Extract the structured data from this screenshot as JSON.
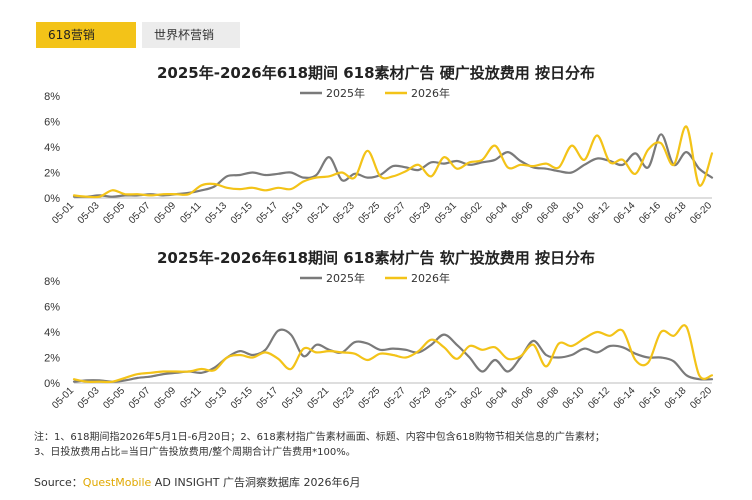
{
  "tabs": [
    {
      "label": "618营销",
      "active": true
    },
    {
      "label": "世界杯营销",
      "active": false
    }
  ],
  "colors": {
    "series_2025": "#7a7a7a",
    "series_2026": "#f3c318",
    "accent": "#f3c318"
  },
  "chart_data": [
    {
      "type": "line",
      "title": "2025年-2026年618期间 618素材广告 硬广投放费用 按日分布",
      "x": [
        "05-01",
        "05-02",
        "05-03",
        "05-04",
        "05-05",
        "05-06",
        "05-07",
        "05-08",
        "05-09",
        "05-10",
        "05-11",
        "05-12",
        "05-13",
        "05-14",
        "05-15",
        "05-16",
        "05-17",
        "05-18",
        "05-19",
        "05-20",
        "05-21",
        "05-22",
        "05-23",
        "05-24",
        "05-25",
        "05-26",
        "05-27",
        "05-28",
        "05-29",
        "05-30",
        "05-31",
        "06-01",
        "06-02",
        "06-03",
        "06-04",
        "06-05",
        "06-06",
        "06-07",
        "06-08",
        "06-09",
        "06-10",
        "06-11",
        "06-12",
        "06-13",
        "06-14",
        "06-15",
        "06-16",
        "06-17",
        "06-18",
        "06-19",
        "06-20"
      ],
      "xticks": [
        "05-01",
        "05-03",
        "05-05",
        "05-07",
        "05-09",
        "05-11",
        "05-13",
        "05-15",
        "05-17",
        "05-19",
        "05-21",
        "05-23",
        "05-25",
        "05-27",
        "05-29",
        "05-31",
        "06-02",
        "06-04",
        "06-06",
        "06-08",
        "06-10",
        "06-12",
        "06-14",
        "06-16",
        "06-18",
        "06-20"
      ],
      "yticks": [
        "0%",
        "2%",
        "4%",
        "6%",
        "8%"
      ],
      "ylim": [
        0,
        8
      ],
      "legend": "top-center",
      "series": [
        {
          "name": "2025年",
          "values": [
            0.1,
            0.1,
            0.2,
            0.1,
            0.2,
            0.2,
            0.3,
            0.2,
            0.3,
            0.4,
            0.6,
            0.9,
            1.7,
            1.8,
            2.0,
            1.8,
            1.9,
            2.0,
            1.6,
            1.8,
            3.2,
            1.4,
            1.9,
            1.6,
            1.8,
            2.5,
            2.4,
            2.2,
            2.8,
            2.7,
            2.9,
            2.6,
            2.8,
            3.0,
            3.6,
            2.9,
            2.4,
            2.3,
            2.1,
            2.0,
            2.6,
            3.1,
            2.9,
            2.6,
            3.5,
            2.4,
            5.0,
            2.6,
            3.6,
            2.3,
            1.6
          ]
        },
        {
          "name": "2026年",
          "values": [
            0.2,
            0.1,
            0.1,
            0.6,
            0.3,
            0.3,
            0.2,
            0.3,
            0.3,
            0.3,
            1.0,
            1.1,
            0.8,
            0.7,
            0.8,
            0.6,
            0.8,
            0.7,
            1.3,
            1.6,
            1.7,
            2.0,
            1.6,
            3.7,
            1.7,
            1.7,
            2.1,
            2.6,
            1.7,
            3.2,
            2.3,
            2.8,
            3.0,
            4.1,
            2.4,
            2.6,
            2.5,
            2.7,
            2.4,
            4.1,
            3.0,
            4.9,
            2.8,
            3.0,
            1.9,
            3.8,
            4.3,
            2.6,
            5.6,
            1.0,
            3.5
          ]
        }
      ]
    },
    {
      "type": "line",
      "title": "2025年-2026年618期间 618素材广告 软广投放费用 按日分布",
      "x": [
        "05-01",
        "05-02",
        "05-03",
        "05-04",
        "05-05",
        "05-06",
        "05-07",
        "05-08",
        "05-09",
        "05-10",
        "05-11",
        "05-12",
        "05-13",
        "05-14",
        "05-15",
        "05-16",
        "05-17",
        "05-18",
        "05-19",
        "05-20",
        "05-21",
        "05-22",
        "05-23",
        "05-24",
        "05-25",
        "05-26",
        "05-27",
        "05-28",
        "05-29",
        "05-30",
        "05-31",
        "06-01",
        "06-02",
        "06-03",
        "06-04",
        "06-05",
        "06-06",
        "06-07",
        "06-08",
        "06-09",
        "06-10",
        "06-11",
        "06-12",
        "06-13",
        "06-14",
        "06-15",
        "06-16",
        "06-17",
        "06-18",
        "06-19",
        "06-20"
      ],
      "xticks": [
        "05-01",
        "05-03",
        "05-05",
        "05-07",
        "05-09",
        "05-11",
        "05-13",
        "05-15",
        "05-17",
        "05-19",
        "05-21",
        "05-23",
        "05-25",
        "05-27",
        "05-29",
        "05-31",
        "06-02",
        "06-04",
        "06-06",
        "06-08",
        "06-10",
        "06-12",
        "06-14",
        "06-16",
        "06-18",
        "06-20"
      ],
      "yticks": [
        "0%",
        "2%",
        "4%",
        "6%",
        "8%"
      ],
      "ylim": [
        0,
        8
      ],
      "legend": "top-center",
      "series": [
        {
          "name": "2025年",
          "values": [
            0.1,
            0.2,
            0.2,
            0.1,
            0.2,
            0.4,
            0.5,
            0.7,
            0.8,
            0.9,
            0.8,
            1.2,
            2.0,
            2.5,
            2.2,
            2.6,
            4.1,
            3.8,
            2.1,
            3.0,
            2.6,
            2.4,
            3.2,
            3.1,
            2.6,
            2.7,
            2.6,
            2.4,
            3.0,
            3.8,
            3.0,
            2.0,
            0.9,
            1.8,
            0.9,
            2.0,
            3.3,
            2.2,
            2.0,
            2.2,
            2.7,
            2.4,
            2.9,
            2.8,
            2.3,
            2.0,
            2.0,
            1.7,
            0.6,
            0.3,
            0.3
          ]
        },
        {
          "name": "2026年",
          "values": [
            0.3,
            0.1,
            0.1,
            0.1,
            0.4,
            0.7,
            0.8,
            0.9,
            0.9,
            0.9,
            1.1,
            1.0,
            2.0,
            2.2,
            2.0,
            2.4,
            1.9,
            1.1,
            2.7,
            2.4,
            2.5,
            2.4,
            2.3,
            1.8,
            2.3,
            2.2,
            2.0,
            2.5,
            3.4,
            2.8,
            1.9,
            2.9,
            2.6,
            2.8,
            1.9,
            2.1,
            3.0,
            1.3,
            3.1,
            2.9,
            3.5,
            4.0,
            3.7,
            4.1,
            1.8,
            1.6,
            4.0,
            3.7,
            4.4,
            0.6,
            0.6
          ]
        }
      ]
    }
  ],
  "notes": {
    "line1": "注：1、618期间指2026年5月1日-6月20日；2、618素材指广告素材画面、标题、内容中包含618购物节相关信息的广告素材；",
    "line2": "3、日投放费用占比=当日广告投放费用/整个周期合计广告费用*100%。"
  },
  "source": {
    "label": "Source：",
    "brand": "QuestMobile",
    "text": " AD INSIGHT 广告洞察数据库 2026年6月"
  }
}
